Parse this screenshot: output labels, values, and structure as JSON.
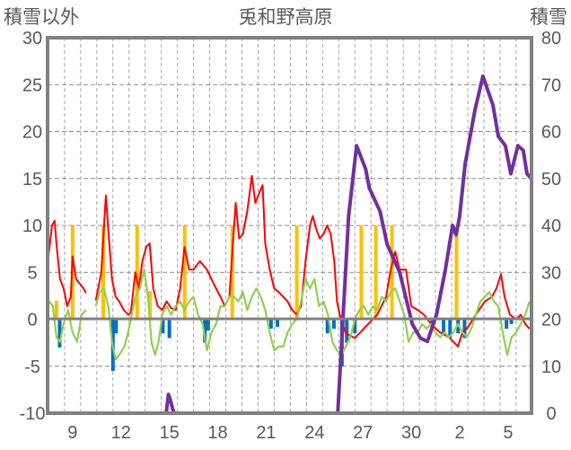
{
  "chart_data": {
    "type": "line",
    "title": "兎和野高原",
    "ylabel": "積雪以外",
    "y2label": "積雪",
    "xlim": [
      7.45,
      37.45
    ],
    "ylim": [
      -10,
      30
    ],
    "y2lim": [
      0,
      80
    ],
    "grid": true,
    "legend": "none",
    "x_ticks": [
      {
        "day": 9,
        "label": "9"
      },
      {
        "day": 12,
        "label": "12"
      },
      {
        "day": 15,
        "label": "15"
      },
      {
        "day": 18,
        "label": "18"
      },
      {
        "day": 21,
        "label": "21"
      },
      {
        "day": 24,
        "label": "24"
      },
      {
        "day": 27,
        "label": "27"
      },
      {
        "day": 30,
        "label": "30"
      },
      {
        "day": 33,
        "label": "2"
      },
      {
        "day": 36,
        "label": "5"
      }
    ],
    "y_ticks": [
      "30",
      "25",
      "20",
      "15",
      "10",
      "5",
      "0",
      "-5",
      "-10"
    ],
    "y2_ticks": [
      "80",
      "70",
      "60",
      "50",
      "40",
      "30",
      "20",
      "10",
      "0"
    ],
    "colors": {
      "red": "#ff0000",
      "green": "#92d050",
      "purple": "#7030a0",
      "yellow": "#ffc000",
      "blue": "#0070c0"
    },
    "bars_positive": [
      [
        8.0,
        2
      ],
      [
        9.0,
        10
      ],
      [
        10.9,
        10
      ],
      [
        13.0,
        10
      ],
      [
        13.8,
        3
      ],
      [
        15.95,
        10
      ],
      [
        18.9,
        10
      ],
      [
        22.9,
        10
      ],
      [
        26.9,
        10
      ],
      [
        27.8,
        10
      ],
      [
        28.8,
        10
      ],
      [
        32.8,
        10
      ]
    ],
    "bars_negative": [
      [
        8.2,
        -3
      ],
      [
        11.5,
        -5.5
      ],
      [
        11.7,
        -1.5
      ],
      [
        14.6,
        -1.5
      ],
      [
        15.0,
        -2
      ],
      [
        17.2,
        -2.5
      ],
      [
        17.4,
        -1.2
      ],
      [
        21.3,
        -1
      ],
      [
        21.7,
        -0.8
      ],
      [
        24.8,
        -1.5
      ],
      [
        25.2,
        -1
      ],
      [
        25.7,
        -5
      ],
      [
        26.0,
        -2.5
      ],
      [
        26.5,
        -1.5
      ],
      [
        31.3,
        -1
      ],
      [
        32.0,
        -1.5
      ],
      [
        32.4,
        -2
      ],
      [
        32.9,
        -1.5
      ],
      [
        33.3,
        -2
      ],
      [
        35.9,
        -1
      ],
      [
        36.2,
        -0.5
      ]
    ],
    "series": [
      {
        "name": "red",
        "axis": "left",
        "points": [
          [
            7.5,
            6.7
          ],
          [
            7.72,
            10
          ],
          [
            7.89,
            10.5
          ],
          [
            8.0,
            8
          ],
          [
            8.22,
            4.3
          ],
          [
            8.44,
            3.3
          ],
          [
            8.67,
            1.4
          ],
          [
            8.89,
            2.4
          ],
          [
            9.0,
            6.7
          ],
          [
            9.22,
            4.3
          ],
          [
            9.44,
            3.8
          ],
          [
            9.67,
            3.3
          ],
          [
            9.83,
            2.8
          ],
          null,
          [
            10.44,
            2
          ],
          [
            10.78,
            5
          ],
          [
            11.06,
            13.2
          ],
          [
            11.22,
            9.5
          ],
          [
            11.44,
            4.3
          ],
          [
            11.67,
            2.4
          ],
          [
            11.89,
            1.9
          ],
          [
            12.17,
            1.0
          ],
          [
            12.44,
            0.5
          ],
          [
            12.61,
            0.7
          ],
          [
            12.89,
            5
          ],
          [
            13.11,
            3.3
          ],
          [
            13.33,
            6.2
          ],
          [
            13.56,
            7.7
          ],
          [
            13.78,
            8.1
          ],
          [
            14.0,
            3.3
          ],
          [
            14.28,
            1.4
          ],
          [
            14.56,
            1.0
          ],
          [
            14.83,
            1.9
          ],
          [
            15.11,
            1.2
          ],
          [
            15.39,
            1.0
          ],
          [
            15.67,
            3.3
          ],
          [
            15.94,
            7.7
          ],
          [
            16.22,
            5.3
          ],
          [
            16.5,
            5.3
          ],
          [
            16.89,
            6.2
          ],
          [
            17.33,
            5.3
          ],
          [
            17.61,
            4.3
          ],
          [
            17.89,
            3.3
          ],
          [
            18.17,
            2.4
          ],
          [
            18.44,
            1.4
          ],
          [
            18.72,
            2.4
          ],
          [
            18.94,
            8.1
          ],
          [
            19.11,
            12.4
          ],
          [
            19.33,
            8.6
          ],
          [
            19.56,
            9.1
          ],
          [
            19.83,
            11.5
          ],
          [
            20.11,
            15.3
          ],
          [
            20.33,
            12.4
          ],
          [
            20.56,
            13.4
          ],
          [
            20.78,
            14.3
          ],
          [
            20.94,
            8.1
          ],
          [
            21.22,
            5.3
          ],
          [
            21.5,
            3.3
          ],
          [
            21.78,
            2.9
          ],
          [
            22.06,
            2.4
          ],
          [
            22.33,
            1.9
          ],
          [
            22.61,
            1.0
          ],
          [
            22.89,
            0.5
          ],
          [
            23.17,
            1.4
          ],
          [
            23.44,
            6.2
          ],
          [
            23.72,
            10
          ],
          [
            23.89,
            11
          ],
          [
            24.11,
            9.6
          ],
          [
            24.33,
            8.6
          ],
          [
            24.56,
            9.1
          ],
          [
            24.78,
            10
          ],
          [
            25.0,
            9.1
          ],
          [
            25.22,
            6.2
          ],
          [
            25.39,
            1.9
          ],
          [
            25.56,
            0.5
          ],
          [
            25.94,
            -1.5
          ],
          [
            26.5,
            -2
          ],
          [
            27.33,
            -0.5
          ],
          [
            27.89,
            0.5
          ],
          [
            28.44,
            2.4
          ],
          [
            28.72,
            5.3
          ],
          [
            29.0,
            7.2
          ],
          [
            29.28,
            5.3
          ],
          [
            29.67,
            5.3
          ],
          [
            30.0,
            1.4
          ],
          [
            30.39,
            1.0
          ],
          [
            30.78,
            0.5
          ],
          [
            31.22,
            -0.5
          ],
          [
            31.78,
            -1.4
          ],
          [
            32.33,
            -1.9
          ],
          [
            32.61,
            -2.4
          ],
          [
            32.89,
            -2.9
          ],
          [
            33.17,
            -1.4
          ],
          [
            33.44,
            -1.0
          ],
          [
            34.0,
            0.5
          ],
          [
            34.56,
            1.9
          ],
          [
            35.0,
            2.4
          ],
          [
            35.28,
            3.3
          ],
          [
            35.56,
            4.8
          ],
          [
            35.78,
            2.4
          ],
          [
            36.11,
            0.5
          ],
          [
            36.5,
            0
          ],
          [
            36.78,
            0.5
          ],
          [
            37.06,
            -0.5
          ],
          [
            37.33,
            -1.0
          ]
        ]
      },
      {
        "name": "green",
        "axis": "left",
        "points": [
          [
            7.5,
            2
          ],
          [
            7.78,
            1.4
          ],
          [
            8.0,
            -1.9
          ],
          [
            8.22,
            -2.4
          ],
          [
            8.44,
            -0.5
          ],
          [
            8.72,
            1.0
          ],
          [
            9.0,
            -1.4
          ],
          [
            9.28,
            -2.4
          ],
          [
            9.56,
            0.5
          ],
          [
            9.83,
            1.0
          ],
          null,
          [
            10.44,
            1.4
          ],
          [
            10.67,
            2.9
          ],
          [
            10.94,
            3.3
          ],
          [
            11.22,
            1.4
          ],
          [
            11.44,
            -2.4
          ],
          [
            11.67,
            -4.3
          ],
          [
            11.89,
            -3.8
          ],
          [
            12.22,
            -2.9
          ],
          [
            12.44,
            -1.4
          ],
          [
            12.67,
            0.5
          ],
          [
            12.89,
            2.4
          ],
          [
            13.17,
            3.3
          ],
          [
            13.44,
            5.3
          ],
          [
            13.67,
            2.4
          ],
          [
            13.89,
            -2.4
          ],
          [
            14.11,
            -3.8
          ],
          [
            14.33,
            -2.4
          ],
          [
            14.56,
            0.5
          ],
          [
            14.83,
            1.4
          ],
          [
            15.11,
            0.5
          ],
          [
            15.39,
            1.4
          ],
          [
            15.67,
            1.9
          ],
          [
            15.94,
            1.0
          ],
          [
            16.22,
            1.9
          ],
          [
            16.5,
            2.4
          ],
          [
            16.78,
            0.5
          ],
          [
            17.06,
            -0.5
          ],
          [
            17.33,
            -3.3
          ],
          [
            17.61,
            -1.4
          ],
          [
            17.89,
            -0.5
          ],
          [
            18.17,
            1.4
          ],
          [
            18.44,
            1.4
          ],
          [
            18.72,
            2.4
          ],
          [
            19.0,
            2.4
          ],
          [
            19.28,
            1.9
          ],
          [
            19.56,
            2.9
          ],
          [
            19.83,
            1.0
          ],
          [
            20.11,
            2.4
          ],
          [
            20.39,
            3.3
          ],
          [
            20.67,
            2.4
          ],
          [
            20.94,
            1.0
          ],
          [
            21.22,
            -1.4
          ],
          [
            21.5,
            -3.3
          ],
          [
            21.78,
            -2.9
          ],
          [
            22.06,
            -2.9
          ],
          [
            22.33,
            -1.4
          ],
          [
            22.61,
            -0.5
          ],
          [
            22.89,
            0
          ],
          [
            23.17,
            1.9
          ],
          [
            23.44,
            4.3
          ],
          [
            23.72,
            3.3
          ],
          [
            24.0,
            4.3
          ],
          [
            24.28,
            1.4
          ],
          [
            24.56,
            1.9
          ],
          [
            24.83,
            0.5
          ],
          [
            25.11,
            -2.4
          ],
          [
            25.39,
            -3.3
          ],
          [
            25.67,
            -3.8
          ],
          [
            25.94,
            -2.9
          ],
          [
            26.22,
            -1.9
          ],
          [
            26.5,
            0
          ],
          [
            26.78,
            1.0
          ],
          [
            27.06,
            1.4
          ],
          [
            27.33,
            0.5
          ],
          [
            27.61,
            1.4
          ],
          [
            27.89,
            1.0
          ],
          [
            28.17,
            2.4
          ],
          [
            28.44,
            1.9
          ],
          [
            28.72,
            2.9
          ],
          [
            29.0,
            3.3
          ],
          [
            29.28,
            1.9
          ],
          [
            29.56,
            0.5
          ],
          [
            29.83,
            -2.4
          ],
          [
            30.11,
            -1.4
          ],
          [
            30.39,
            -1.4
          ],
          [
            30.67,
            -0.5
          ],
          [
            30.94,
            -1.0
          ],
          [
            31.22,
            -0.5
          ],
          [
            31.5,
            -1.4
          ],
          [
            31.78,
            -1.9
          ],
          [
            32.06,
            -1.4
          ],
          [
            32.33,
            -1.9
          ],
          [
            32.61,
            -1.4
          ],
          [
            32.89,
            -0.5
          ],
          [
            33.17,
            -1.4
          ],
          [
            33.44,
            -1.9
          ],
          [
            33.72,
            -1.0
          ],
          [
            34.0,
            0.5
          ],
          [
            34.28,
            1.9
          ],
          [
            34.56,
            2.4
          ],
          [
            34.83,
            2.9
          ],
          [
            35.11,
            1.9
          ],
          [
            35.39,
            1.4
          ],
          [
            35.67,
            -1.4
          ],
          [
            35.94,
            -3.8
          ],
          [
            36.22,
            -1.9
          ],
          [
            36.5,
            -1.4
          ],
          [
            36.78,
            -0.5
          ],
          [
            37.06,
            0.5
          ],
          [
            37.33,
            1.9
          ]
        ]
      },
      {
        "name": "purple",
        "axis": "right",
        "points": [
          [
            7.5,
            0
          ],
          [
            9.83,
            0
          ],
          null,
          [
            10.44,
            0
          ],
          [
            14.8,
            0
          ],
          [
            14.94,
            4
          ],
          [
            15.05,
            3
          ],
          [
            15.2,
            1
          ],
          [
            15.3,
            0
          ],
          [
            25.44,
            0
          ],
          [
            26.11,
            42
          ],
          [
            26.61,
            57
          ],
          [
            27.17,
            52
          ],
          [
            27.39,
            48
          ],
          [
            28.06,
            43
          ],
          [
            28.5,
            36
          ],
          [
            29.28,
            30
          ],
          [
            30.06,
            19
          ],
          [
            30.56,
            16
          ],
          [
            31.0,
            15.3
          ],
          [
            31.56,
            21
          ],
          [
            32.11,
            30.6
          ],
          [
            32.56,
            40
          ],
          [
            32.78,
            38
          ],
          [
            33.0,
            42
          ],
          [
            33.33,
            53
          ],
          [
            33.94,
            64.5
          ],
          [
            34.44,
            71.8
          ],
          [
            35.06,
            65.6
          ],
          [
            35.39,
            59
          ],
          [
            35.83,
            57
          ],
          [
            36.17,
            51
          ],
          [
            36.61,
            57
          ],
          [
            36.94,
            56
          ],
          [
            37.17,
            51
          ],
          [
            37.44,
            50
          ]
        ]
      }
    ]
  }
}
